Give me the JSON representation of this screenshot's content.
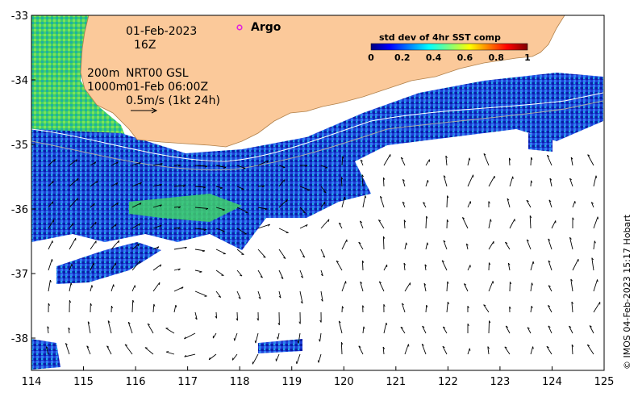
{
  "map": {
    "lon_ticks": [
      "114",
      "115",
      "116",
      "117",
      "118",
      "119",
      "120",
      "121",
      "122",
      "123",
      "124",
      "125"
    ],
    "lat_ticks": [
      "-33",
      "-34",
      "-35",
      "-36",
      "-37",
      "-38"
    ],
    "lon_range": [
      114,
      125
    ],
    "lat_range": [
      -38.5,
      -33
    ],
    "land_color": "#fbc99a",
    "ocean_color": "#ffffff"
  },
  "annotations": {
    "date": "01-Feb-2023",
    "hour": "16Z",
    "iso_200": "200m",
    "iso_1000": "1000m",
    "product": "NRT00 GSL",
    "product_time": "01-Feb 06:00Z",
    "scale_label": "0.5m/s (1kt 24h)"
  },
  "legend": {
    "argo_label": "Argo",
    "argo_color": "#e020e0",
    "colorbar_title": "std dev of 4hr SST comp",
    "colorbar_ticks": [
      "0",
      "0.2",
      "0.4",
      "0.6",
      "0.8",
      "1"
    ],
    "colorbar_colors": [
      "#00007f",
      "#0000ff",
      "#007fff",
      "#00ffff",
      "#7fff7f",
      "#ffff00",
      "#ff7f00",
      "#ff0000",
      "#7f0000"
    ]
  },
  "credit": "© IMOS 04-Feb-2023 15:17 Hobart"
}
